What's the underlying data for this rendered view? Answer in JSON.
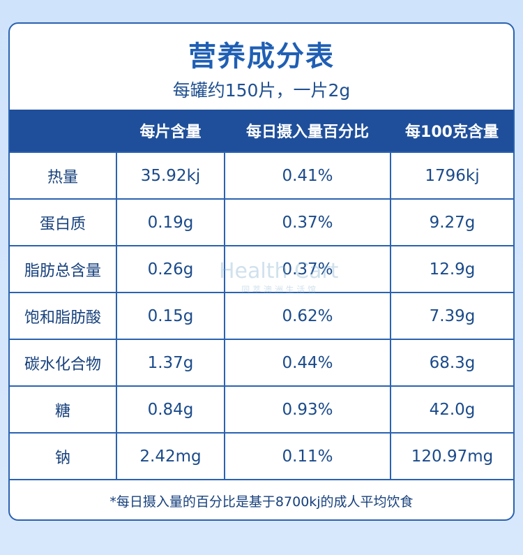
{
  "header": {
    "title": "营养成分表",
    "subtitle": "每罐约150片，一片2g"
  },
  "table": {
    "columns": [
      "每片含量",
      "每日摄入量百分比",
      "每100克含量"
    ],
    "rows": [
      [
        "热量",
        "35.92kj",
        "0.41%",
        "1796kj"
      ],
      [
        "蛋白质",
        "0.19g",
        "0.37%",
        "9.27g"
      ],
      [
        "脂肪总含量",
        "0.26g",
        "0.37%",
        "12.9g"
      ],
      [
        "饱和脂肪酸",
        "0.15g",
        "0.62%",
        "7.39g"
      ],
      [
        "碳水化合物",
        "1.37g",
        "0.44%",
        "68.3g"
      ],
      [
        "糖",
        "0.84g",
        "0.93%",
        "42.0g"
      ],
      [
        "钠",
        "2.42mg",
        "0.11%",
        "120.97mg"
      ]
    ]
  },
  "footnote": "*每日摄入量的百分比是基于8700kj的成人平均饮食",
  "watermark": {
    "brand": "Health Cart",
    "sub": "同 萃 澳 洲 生 活 馆"
  }
}
